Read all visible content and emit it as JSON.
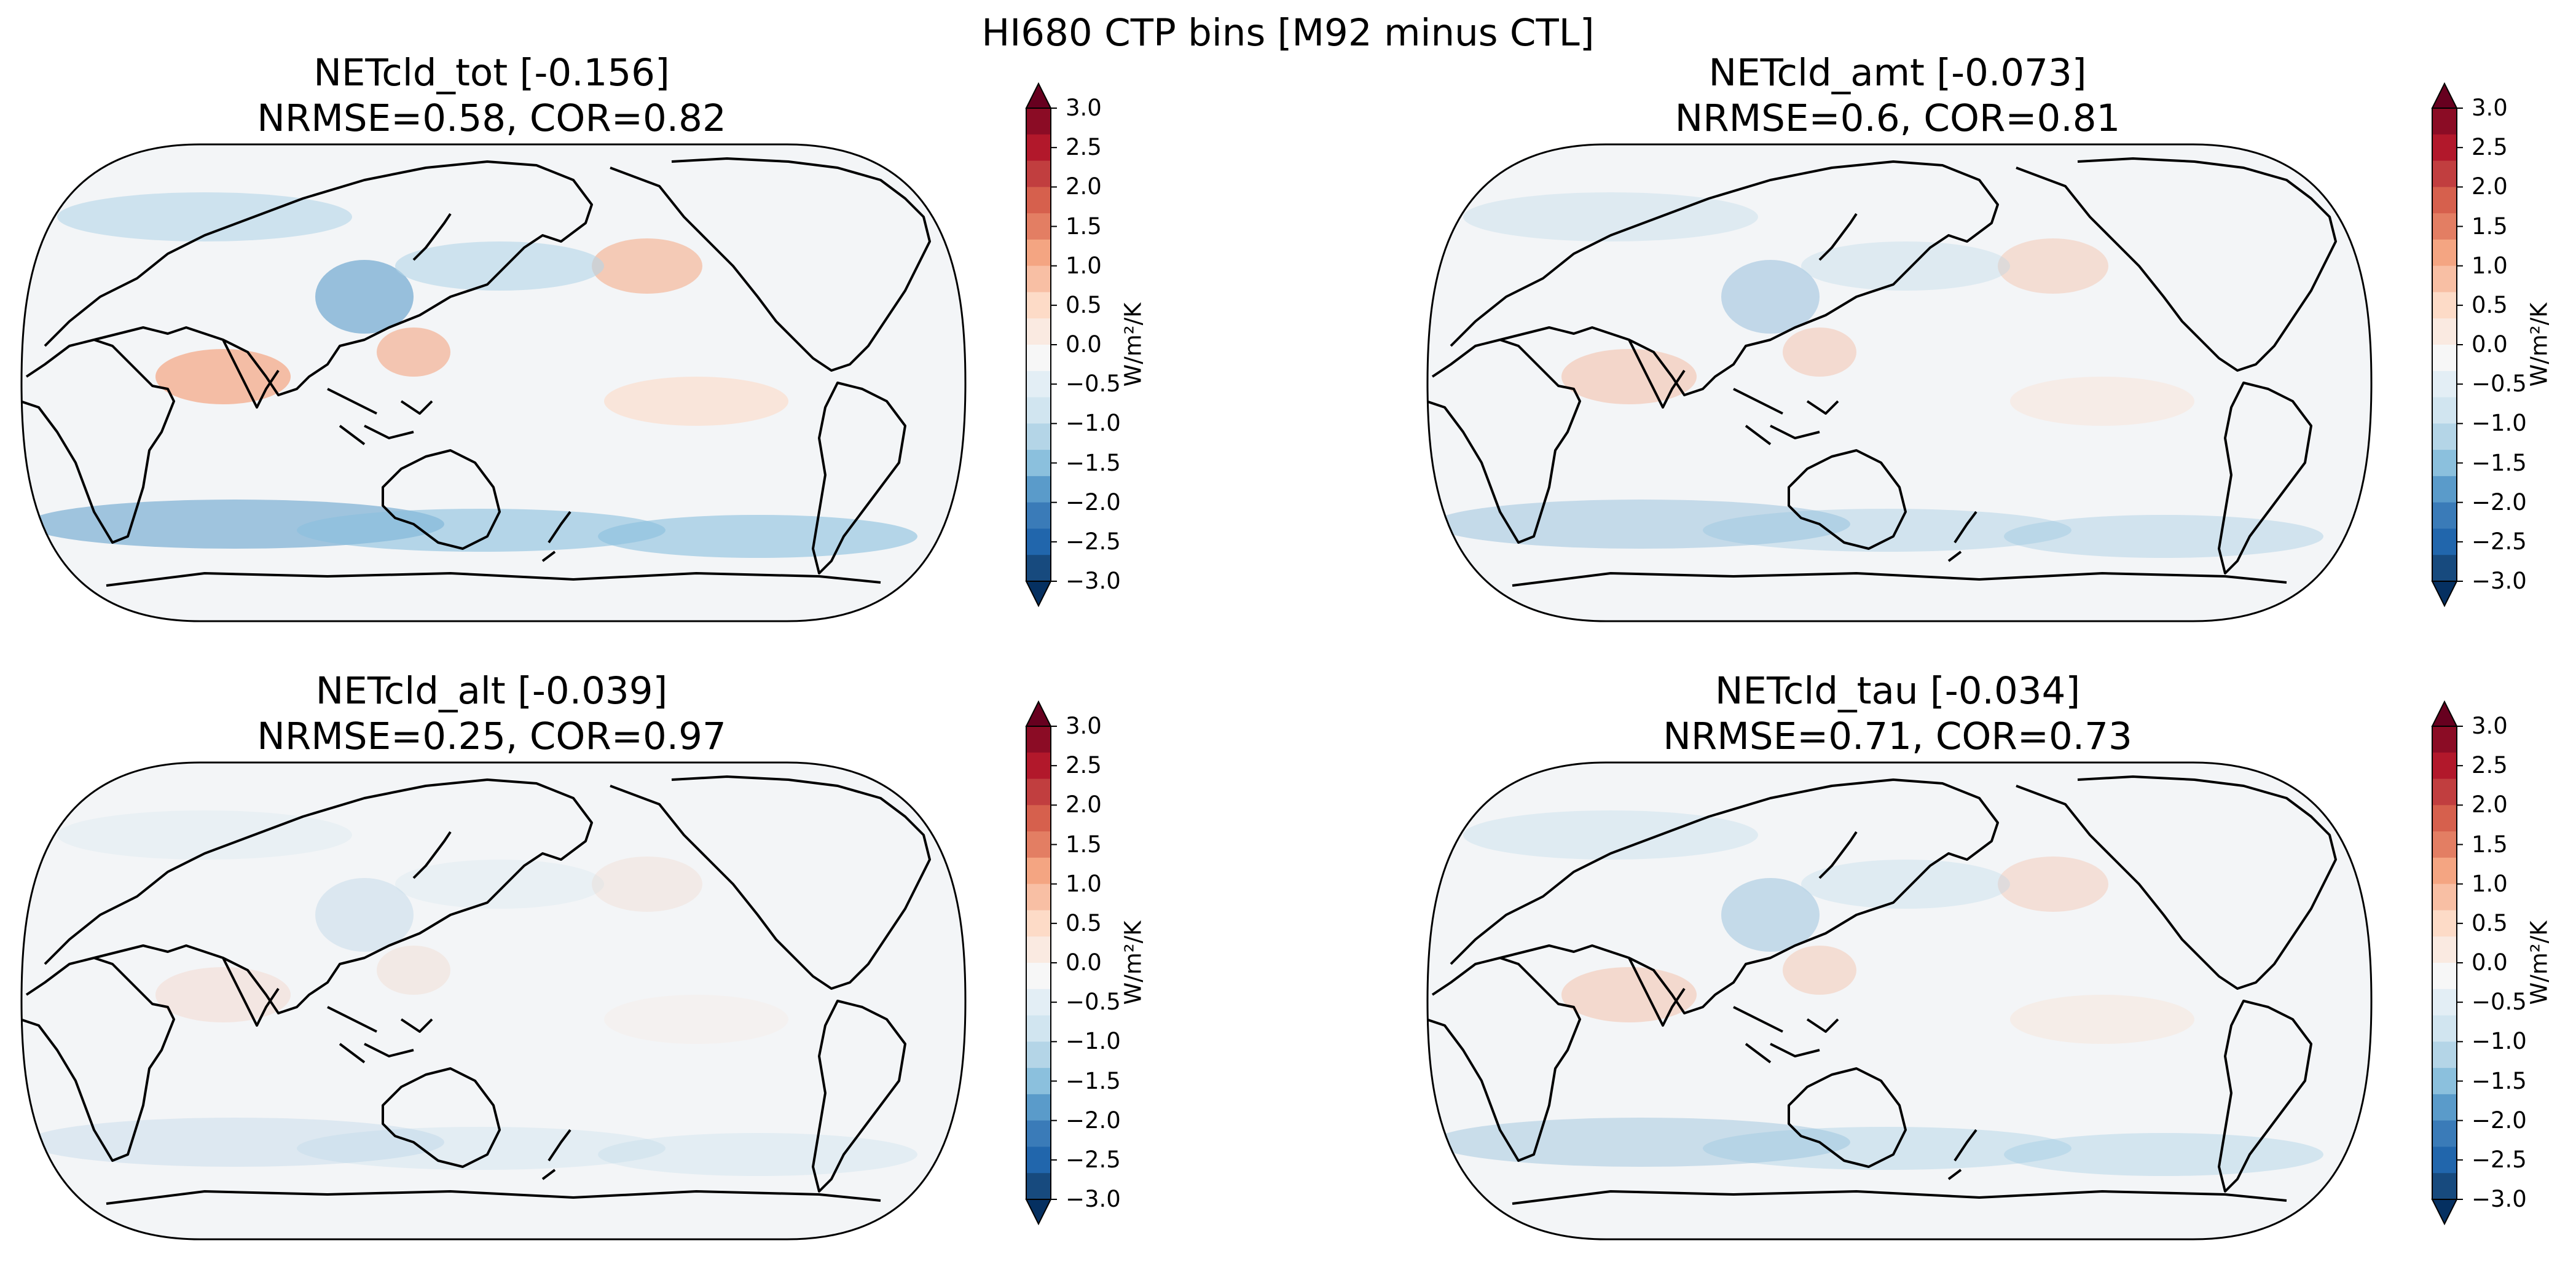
{
  "figure": {
    "title": "HI680 CTP bins [M92 minus CTL]"
  },
  "colorbar": {
    "unit": "W/m²/K",
    "ticks": [
      "3.0",
      "2.5",
      "2.0",
      "1.5",
      "1.0",
      "0.5",
      "0.0",
      "−0.5",
      "−1.0",
      "−1.5",
      "−2.0",
      "−2.5",
      "−3.0"
    ],
    "extend": "both",
    "colormap": "RdBu_r",
    "colors": [
      "#053061",
      "#174a7e",
      "#2166ac",
      "#3a7bb8",
      "#5a9bca",
      "#8bc0dd",
      "#b4d5e7",
      "#d1e5f0",
      "#e3eef5",
      "#f7f7f7",
      "#faeae1",
      "#fddbc7",
      "#f8bfa4",
      "#f4a582",
      "#e37e63",
      "#d6604d",
      "#c13e3f",
      "#b2182b",
      "#8b0c25",
      "#67001f"
    ]
  },
  "chart_data": [
    {
      "type": "map",
      "projection": "Robinson (central longitude 180)",
      "variable": "NETcld_tot",
      "global_mean": "[-0.156]",
      "title_line1": "NETcld_tot [-0.156]",
      "title_line2": "NRMSE=0.58, COR=0.82",
      "nrmse": 0.58,
      "cor": 0.82,
      "colorbar_range": [
        -3.0,
        3.0
      ],
      "colorbar_step": 0.5
    },
    {
      "type": "map",
      "projection": "Robinson (central longitude 180)",
      "variable": "NETcld_amt",
      "global_mean": "[-0.073]",
      "title_line1": "NETcld_amt [-0.073]",
      "title_line2": "NRMSE=0.6, COR=0.81",
      "nrmse": 0.6,
      "cor": 0.81,
      "colorbar_range": [
        -3.0,
        3.0
      ],
      "colorbar_step": 0.5
    },
    {
      "type": "map",
      "projection": "Robinson (central longitude 180)",
      "variable": "NETcld_alt",
      "global_mean": "[-0.039]",
      "title_line1": "NETcld_alt [-0.039]",
      "title_line2": "NRMSE=0.25, COR=0.97",
      "nrmse": 0.25,
      "cor": 0.97,
      "colorbar_range": [
        -3.0,
        3.0
      ],
      "colorbar_step": 0.5
    },
    {
      "type": "map",
      "projection": "Robinson (central longitude 180)",
      "variable": "NETcld_tau",
      "global_mean": "[-0.034]",
      "title_line1": "NETcld_tau [-0.034]",
      "title_line2": "NRMSE=0.71, COR=0.73",
      "nrmse": 0.71,
      "cor": 0.73,
      "colorbar_range": [
        -3.0,
        3.0
      ],
      "colorbar_step": 0.5
    }
  ]
}
